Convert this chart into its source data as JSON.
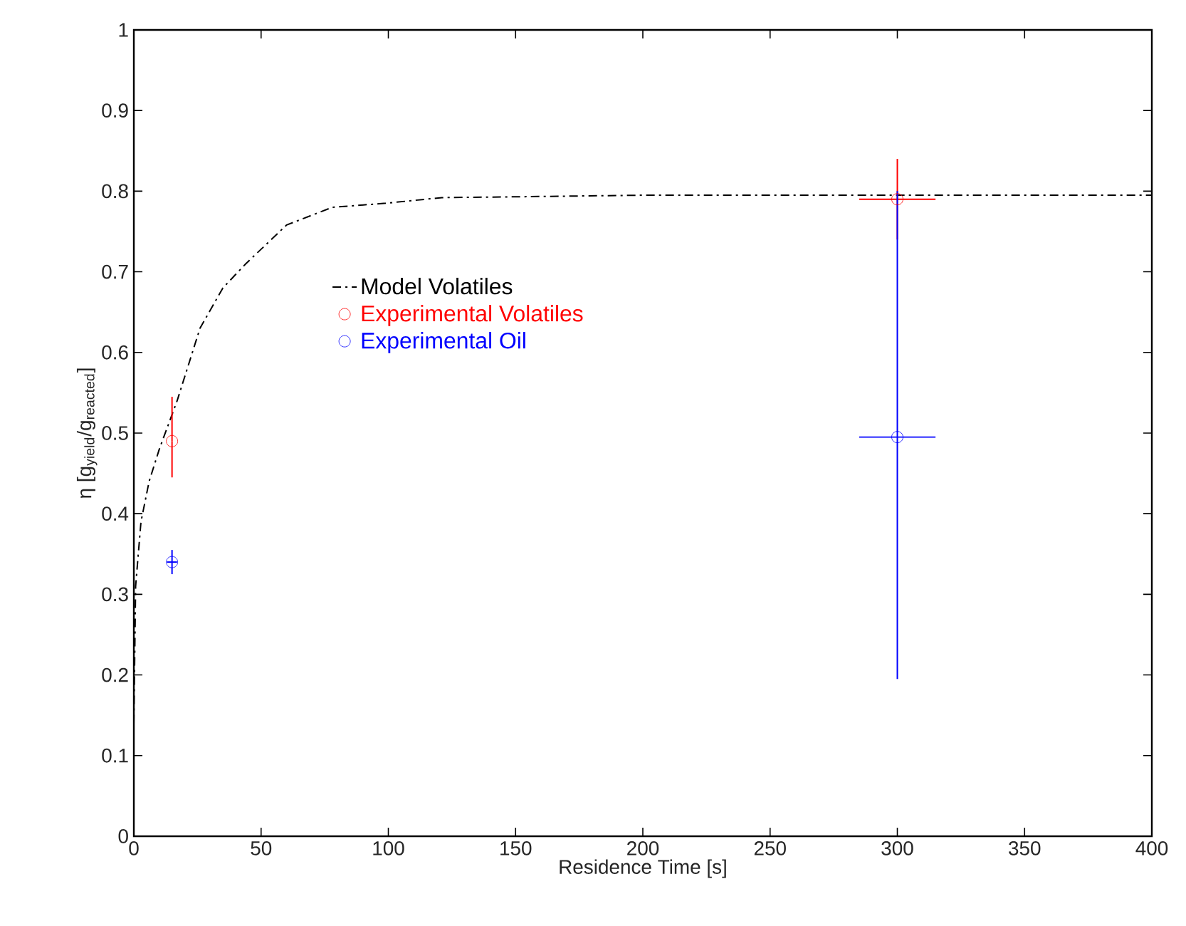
{
  "chart_data": {
    "type": "line",
    "xlabel": "Residence Time [s]",
    "ylabel": "η [g$_{yield}$/g$_{reacted}$]",
    "xlim": [
      0,
      400
    ],
    "ylim": [
      0,
      1
    ],
    "xticks": [
      0,
      50,
      100,
      150,
      200,
      250,
      300,
      350,
      400
    ],
    "yticks": [
      0,
      0.1,
      0.2,
      0.3,
      0.4,
      0.5,
      0.6,
      0.7,
      0.8,
      0.9,
      1
    ],
    "legend": "left",
    "series": [
      {
        "name": "Model Volatiles",
        "color": "#000000",
        "marker": "none",
        "line_style": "dashdot",
        "x": [
          0,
          0.7,
          2.8,
          6,
          10,
          17,
          26,
          35,
          44,
          60,
          78,
          99,
          121,
          150,
          200,
          300,
          400
        ],
        "values": [
          0.14,
          0.31,
          0.39,
          0.44,
          0.48,
          0.54,
          0.63,
          0.68,
          0.71,
          0.758,
          0.78,
          0.785,
          0.792,
          0.793,
          0.795,
          0.795,
          0.795
        ]
      },
      {
        "name": "Experimental Volatiles",
        "type": "scatter",
        "color": "#ff0000",
        "marker": "circle",
        "x": [
          15,
          300
        ],
        "values": [
          0.49,
          0.79
        ],
        "errors": [
          [
            0.445,
            0.545
          ],
          [
            0.74,
            0.84
          ]
        ],
        "xerrors": [
          null,
          [
            285,
            315
          ]
        ]
      },
      {
        "name": "Experimental Oil",
        "type": "scatter",
        "color": "#0000ff",
        "marker": "circle",
        "x": [
          15,
          300
        ],
        "values": [
          0.34,
          0.495
        ],
        "errors": [
          [
            0.325,
            0.355
          ],
          [
            0.195,
            0.8
          ]
        ],
        "xerrors": [
          [
            13,
            17
          ],
          [
            285,
            315
          ]
        ]
      }
    ]
  }
}
